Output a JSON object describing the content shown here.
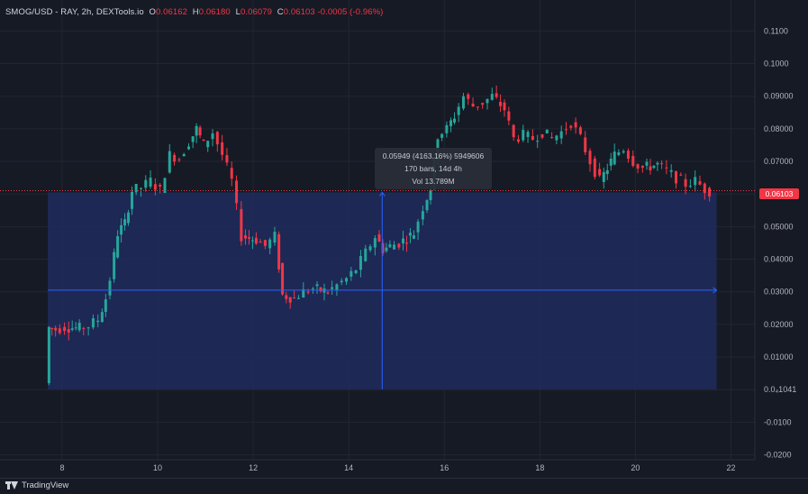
{
  "legend": {
    "symbol": "SMOG/USD - RAY, 2h, DEXTools.io",
    "open_label": "O",
    "open": "0.06162",
    "high_label": "H",
    "high": "0.06180",
    "low_label": "L",
    "low": "0.06079",
    "close_label": "C",
    "close": "0.06103",
    "change": "-0.0005 (-0.96%)"
  },
  "tooltip": {
    "line1": "0.05949 (4163.16%) 5949606",
    "line2": "170 bars, 14d 4h",
    "line3": "Vol 13.789M"
  },
  "price_tag": "0.06103",
  "footer": {
    "brand": "TradingView"
  },
  "colors": {
    "up": "#26a69a",
    "down": "#f23645",
    "range_fill": "#1e2b5e",
    "range_line": "#2962ff",
    "background": "#161a25"
  },
  "chart_data": {
    "type": "candlestick",
    "symbol": "SMOG/USD - RAY",
    "interval": "2h",
    "xticks": [
      8,
      10,
      12,
      14,
      16,
      18,
      20,
      22
    ],
    "xlim": [
      6.7,
      22.5
    ],
    "yticks": [
      "0.1100",
      "0.1000",
      "0.09000",
      "0.08000",
      "0.07000",
      "0.06000",
      "0.05000",
      "0.04000",
      "0.03000",
      "0.02000",
      "0.01000",
      "0.0₄1041",
      "-0.0100",
      "-0.0200"
    ],
    "ytick_values": [
      0.11,
      0.1,
      0.09,
      0.08,
      0.07,
      0.06,
      0.05,
      0.04,
      0.03,
      0.02,
      0.01,
      0.0,
      -0.01,
      -0.02
    ],
    "ylim": [
      -0.0215,
      0.1195
    ],
    "last_price": 0.06103,
    "measure_range": {
      "x_start": 7.7,
      "x_end": 21.7,
      "y_low": 0.0001041,
      "y_high": 0.0605,
      "mid_price": 0.0305
    },
    "path": [
      [
        7.7,
        0.002
      ],
      [
        7.75,
        0.019
      ],
      [
        7.9,
        0.0185
      ],
      [
        8.1,
        0.0192
      ],
      [
        8.4,
        0.0188
      ],
      [
        8.6,
        0.0196
      ],
      [
        8.8,
        0.0215
      ],
      [
        8.95,
        0.028
      ],
      [
        9.05,
        0.034
      ],
      [
        9.2,
        0.048
      ],
      [
        9.35,
        0.051
      ],
      [
        9.5,
        0.061
      ],
      [
        9.7,
        0.062
      ],
      [
        9.9,
        0.064
      ],
      [
        10.1,
        0.061
      ],
      [
        10.3,
        0.072
      ],
      [
        10.5,
        0.071
      ],
      [
        10.7,
        0.076
      ],
      [
        10.85,
        0.08
      ],
      [
        11.0,
        0.075
      ],
      [
        11.2,
        0.079
      ],
      [
        11.4,
        0.072
      ],
      [
        11.6,
        0.064
      ],
      [
        11.8,
        0.047
      ],
      [
        12.1,
        0.046
      ],
      [
        12.3,
        0.044
      ],
      [
        12.5,
        0.047
      ],
      [
        12.65,
        0.029
      ],
      [
        12.9,
        0.028
      ],
      [
        13.1,
        0.03
      ],
      [
        13.3,
        0.031
      ],
      [
        13.6,
        0.03
      ],
      [
        13.8,
        0.032
      ],
      [
        14.0,
        0.034
      ],
      [
        14.2,
        0.037
      ],
      [
        14.4,
        0.042
      ],
      [
        14.6,
        0.047
      ],
      [
        14.75,
        0.043
      ],
      [
        14.9,
        0.044
      ],
      [
        15.1,
        0.045
      ],
      [
        15.4,
        0.048
      ],
      [
        15.6,
        0.056
      ],
      [
        15.75,
        0.062
      ],
      [
        15.9,
        0.078
      ],
      [
        16.1,
        0.08
      ],
      [
        16.25,
        0.084
      ],
      [
        16.45,
        0.09
      ],
      [
        16.65,
        0.087
      ],
      [
        16.85,
        0.088
      ],
      [
        17.05,
        0.09
      ],
      [
        17.3,
        0.086
      ],
      [
        17.5,
        0.077
      ],
      [
        17.7,
        0.078
      ],
      [
        17.9,
        0.077
      ],
      [
        18.1,
        0.079
      ],
      [
        18.3,
        0.077
      ],
      [
        18.5,
        0.079
      ],
      [
        18.7,
        0.082
      ],
      [
        18.9,
        0.077
      ],
      [
        19.1,
        0.07
      ],
      [
        19.3,
        0.064
      ],
      [
        19.45,
        0.068
      ],
      [
        19.6,
        0.072
      ],
      [
        19.8,
        0.074
      ],
      [
        20.0,
        0.07
      ],
      [
        20.2,
        0.068
      ],
      [
        20.5,
        0.069
      ],
      [
        20.7,
        0.067
      ],
      [
        20.9,
        0.065
      ],
      [
        21.1,
        0.063
      ],
      [
        21.3,
        0.064
      ],
      [
        21.5,
        0.0615
      ],
      [
        21.6,
        0.061
      ]
    ]
  }
}
